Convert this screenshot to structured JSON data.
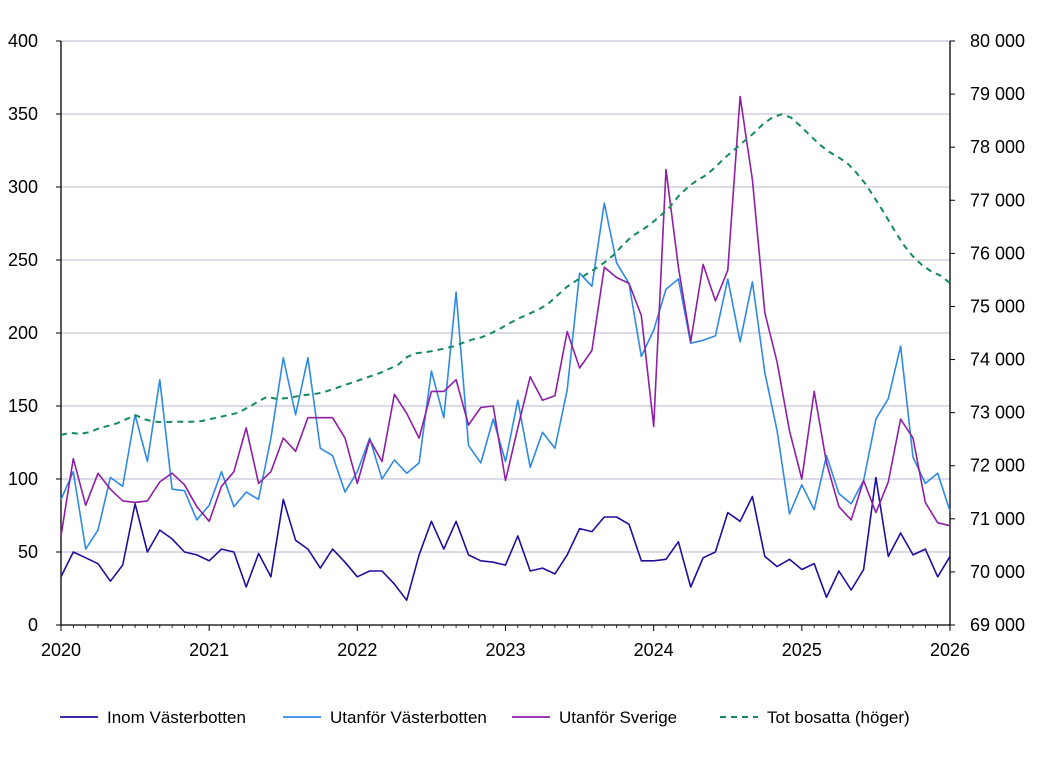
{
  "colors": {
    "inom": "#1f0f9e",
    "utanfor_vb": "#2f8ae6",
    "utanfor_se": "#8e1fa6",
    "tot": "#158a5a",
    "grid": "#c8c8dc",
    "axis": "#000000"
  },
  "chart_data": {
    "type": "line",
    "title": "",
    "xlabel": "",
    "ylabel": "",
    "x_ticks": [
      "2020",
      "2021",
      "2022",
      "2023",
      "2024",
      "2025",
      "2026"
    ],
    "xlim": [
      2020,
      2026
    ],
    "ylim_left": [
      0,
      400
    ],
    "ylim_right": [
      69000,
      80000
    ],
    "y_left_ticks": [
      "0",
      "50",
      "100",
      "150",
      "200",
      "250",
      "300",
      "350",
      "400"
    ],
    "y_right_ticks": [
      "69 000",
      "70 000",
      "71 000",
      "72 000",
      "73 000",
      "74 000",
      "75 000",
      "76 000",
      "77 000",
      "78 000",
      "79 000",
      "80 000"
    ],
    "grid": true,
    "legend_position": "bottom",
    "series": [
      {
        "name": "Inom Västerbotten",
        "axis": "left",
        "values": [
          33,
          50,
          46,
          42,
          30,
          41,
          83,
          50,
          65,
          59,
          50,
          48,
          44,
          52,
          50,
          26,
          49,
          33,
          86,
          58,
          52,
          39,
          52,
          43,
          33,
          37,
          37,
          28,
          17,
          48,
          71,
          52,
          71,
          48,
          44,
          43,
          41,
          61,
          37,
          39,
          35,
          48,
          66,
          64,
          74,
          74,
          69,
          44,
          44,
          45,
          57,
          26,
          46,
          50,
          77,
          71,
          88,
          47,
          40,
          45,
          38,
          42,
          19,
          37,
          24,
          38,
          101,
          47,
          63,
          48,
          52,
          33,
          47
        ]
      },
      {
        "name": "Utanför Västerbotten",
        "axis": "left",
        "values": [
          86,
          105,
          52,
          65,
          101,
          95,
          144,
          112,
          168,
          93,
          92,
          72,
          82,
          105,
          81,
          91,
          86,
          128,
          183,
          144,
          183,
          121,
          116,
          91,
          105,
          128,
          100,
          113,
          104,
          111,
          174,
          142,
          228,
          123,
          111,
          141,
          112,
          154,
          108,
          132,
          121,
          161,
          241,
          232,
          289,
          248,
          234,
          184,
          202,
          230,
          237,
          193,
          195,
          198,
          237,
          194,
          235,
          173,
          133,
          76,
          96,
          79,
          116,
          90,
          83,
          99,
          141,
          155,
          191,
          115,
          97,
          104,
          78
        ]
      },
      {
        "name": "Utanför Sverige",
        "axis": "left",
        "values": [
          61,
          114,
          82,
          104,
          93,
          85,
          84,
          85,
          98,
          104,
          96,
          81,
          71,
          95,
          105,
          135,
          97,
          105,
          128,
          119,
          142,
          142,
          142,
          128,
          97,
          127,
          112,
          158,
          145,
          128,
          160,
          160,
          168,
          137,
          149,
          150,
          99,
          135,
          170,
          154,
          157,
          201,
          176,
          188,
          245,
          238,
          234,
          212,
          136,
          312,
          245,
          194,
          247,
          222,
          243,
          362,
          305,
          214,
          180,
          133,
          100,
          160,
          111,
          81,
          72,
          99,
          77,
          98,
          141,
          128,
          84,
          70,
          68
        ]
      },
      {
        "name": "Tot bosatta (höger)",
        "axis": "right",
        "values": [
          72580,
          72620,
          72600,
          72630,
          72700,
          72750,
          72800,
          72880,
          72950,
          72870,
          72830,
          72820,
          72830,
          72830,
          72830,
          72840,
          72880,
          72920,
          72960,
          73000,
          73100,
          73200,
          73300,
          73260,
          73270,
          73300,
          73330,
          73350,
          73380,
          73440,
          73500,
          73560,
          73620,
          73680,
          73740,
          73820,
          73900,
          74050,
          74120,
          74140,
          74170,
          74210,
          74250,
          74320,
          74380,
          74420,
          74500,
          74590,
          74690,
          74780,
          74860,
          74940,
          75040,
          75200,
          75360,
          75480,
          75590,
          75700,
          75820,
          75960,
          76150,
          76320,
          76430,
          76550,
          76700,
          76860,
          77080,
          77250,
          77380,
          77480,
          77640,
          77810,
          77960,
          78110,
          78260,
          78430,
          78560,
          78620,
          78560,
          78400,
          78230,
          78060,
          77920,
          77820,
          77700,
          77520,
          77300,
          77030,
          76750,
          76450,
          76170,
          75950,
          75780,
          75660,
          75580,
          75440
        ]
      }
    ]
  }
}
